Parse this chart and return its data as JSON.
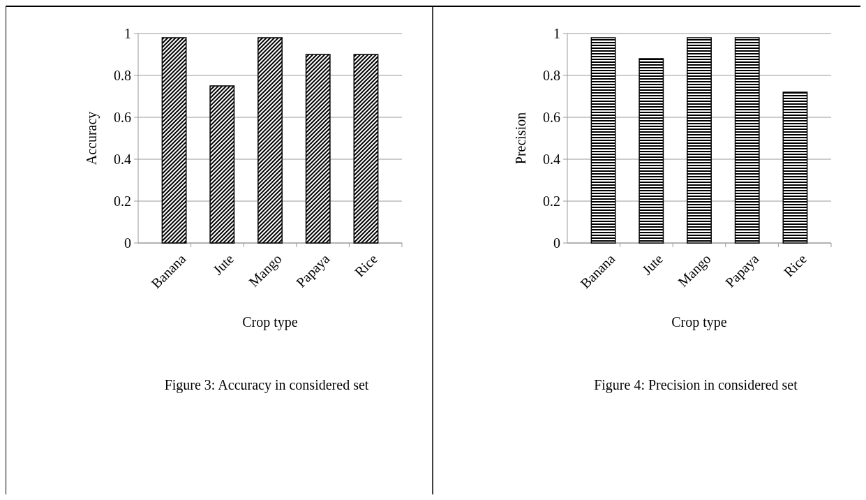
{
  "chart_data": [
    {
      "type": "bar",
      "categories": [
        "Banana",
        "Jute",
        "Mango",
        "Papaya",
        "Rice"
      ],
      "values": [
        0.98,
        0.75,
        0.98,
        0.9,
        0.9
      ],
      "color": "#000000",
      "ylim": [
        0,
        1
      ],
      "yticks": [
        {
          "value": 0,
          "label": "0"
        },
        {
          "value": 0.2,
          "label": "0.2"
        },
        {
          "value": 0.4,
          "label": "0.4"
        },
        {
          "value": 0.6,
          "label": "0.6"
        },
        {
          "value": 0.8,
          "label": "0.8"
        },
        {
          "value": 1,
          "label": "1"
        }
      ],
      "grid": "y",
      "xlabel": "Crop type",
      "ylabel": "Accuracy",
      "annotations": [
        "Figure 3: Accuracy in considered set"
      ]
    },
    {
      "type": "bar",
      "categories": [
        "Banana",
        "Jute",
        "Mango",
        "Papaya",
        "Rice"
      ],
      "values": [
        0.98,
        0.88,
        0.98,
        0.98,
        0.72
      ],
      "color": "#000000",
      "ylim": [
        0,
        1
      ],
      "yticks": [
        {
          "value": 0,
          "label": "0"
        },
        {
          "value": 0.2,
          "label": "0.2"
        },
        {
          "value": 0.4,
          "label": "0.4"
        },
        {
          "value": 0.6,
          "label": "0.6"
        },
        {
          "value": 0.8,
          "label": "0.8"
        },
        {
          "value": 1,
          "label": "1"
        }
      ],
      "grid": "y",
      "xlabel": "Crop type",
      "ylabel": "Precision",
      "annotations": [
        "Figure 4: Precision in considered set"
      ]
    }
  ]
}
